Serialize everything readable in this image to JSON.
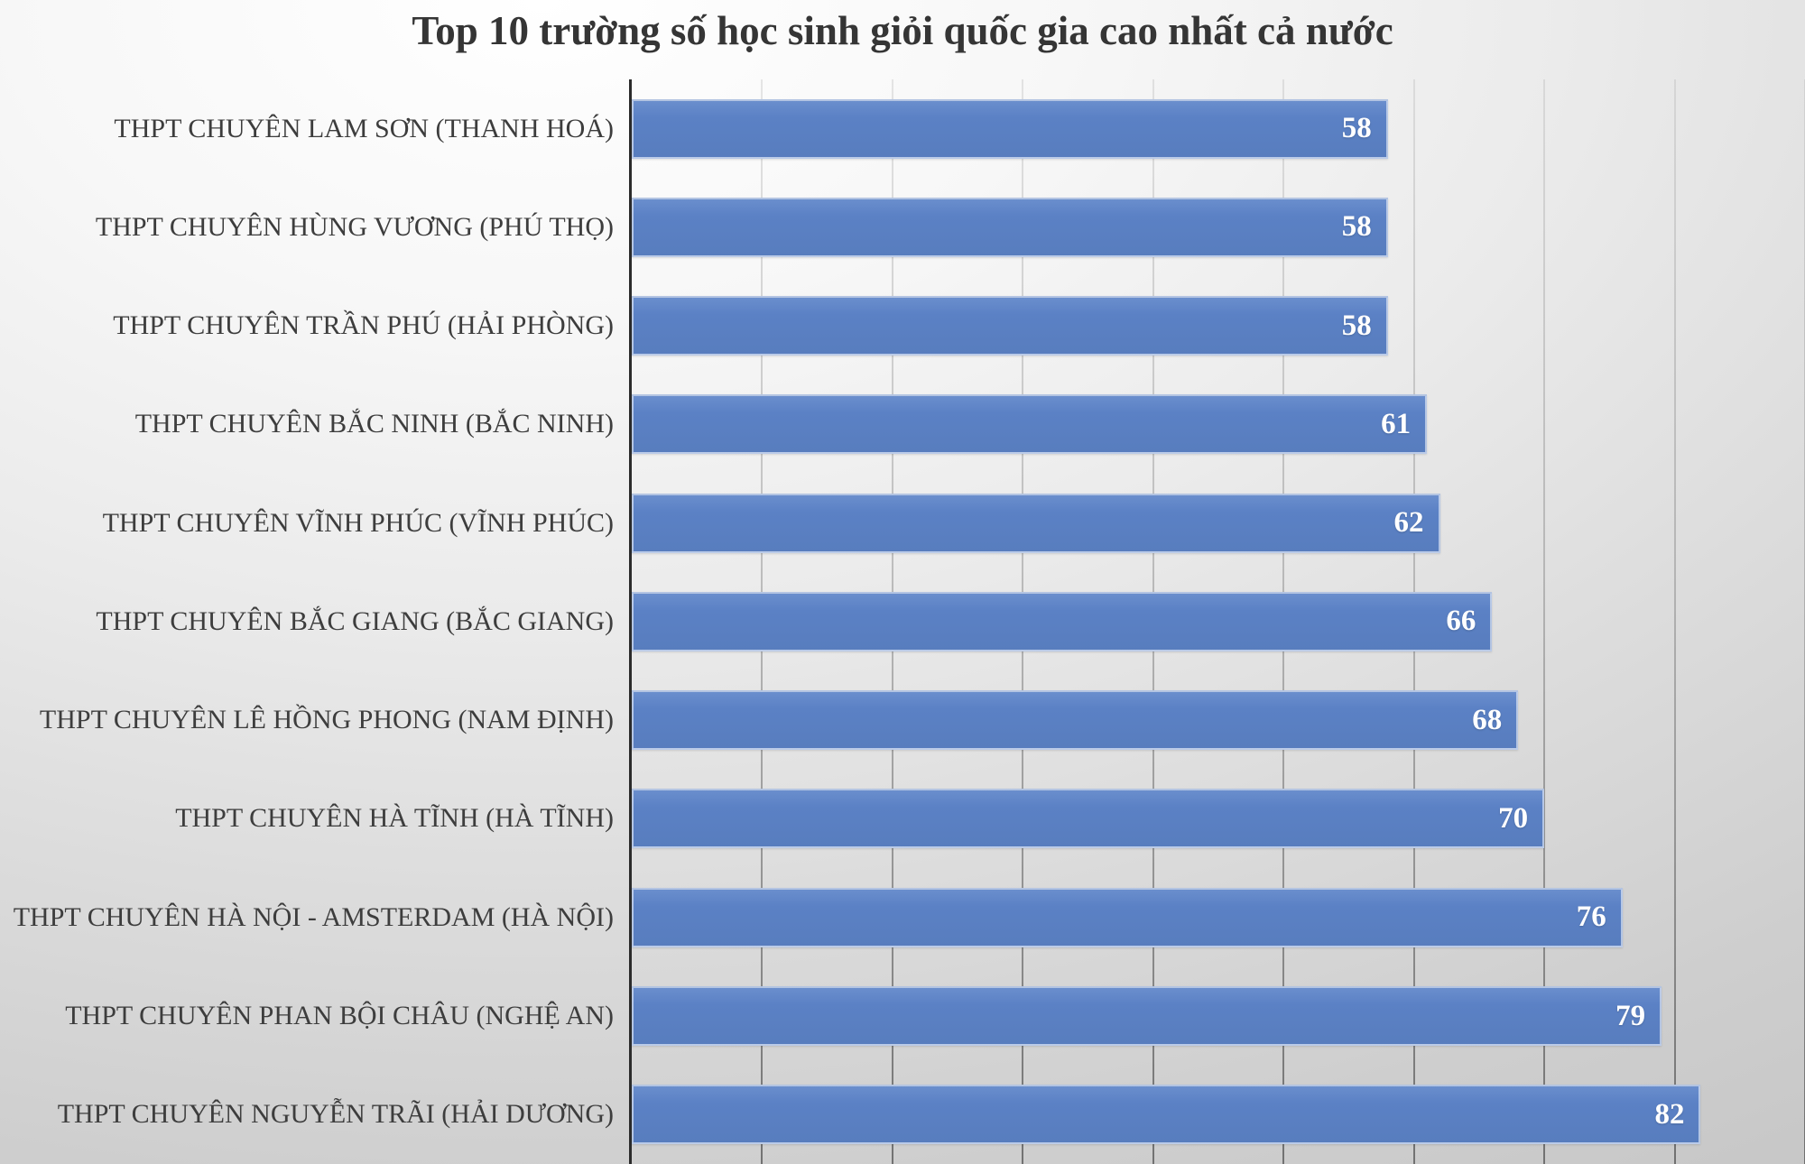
{
  "chart_data": {
    "type": "bar",
    "orientation": "horizontal",
    "title": "Top 10 trường số học sinh giỏi quốc gia cao nhất cả nước",
    "categories": [
      "THPT CHUYÊN LAM SƠN (THANH HOÁ)",
      "THPT CHUYÊN HÙNG VƯƠNG (PHÚ THỌ)",
      "THPT CHUYÊN TRẦN PHÚ (HẢI PHÒNG)",
      "THPT CHUYÊN BẮC NINH (BẮC NINH)",
      "THPT CHUYÊN VĨNH PHÚC (VĨNH PHÚC)",
      "THPT CHUYÊN BẮC GIANG (BẮC GIANG)",
      "THPT CHUYÊN LÊ HỒNG PHONG (NAM ĐỊNH)",
      "THPT CHUYÊN HÀ TĨNH (HÀ TĨNH)",
      "THPT CHUYÊN HÀ NỘI - AMSTERDAM (HÀ NỘI)",
      "THPT CHUYÊN PHAN BỘI CHÂU (NGHỆ AN)",
      "THPT CHUYÊN NGUYỄN TRÃI (HẢI DƯƠNG)"
    ],
    "values": [
      58,
      58,
      58,
      61,
      62,
      66,
      68,
      70,
      76,
      79,
      82
    ],
    "xlim": [
      0,
      90
    ],
    "gridline_step": 10,
    "grid": "vertical",
    "legend": "none",
    "value_labels": "inside-end",
    "colors": {
      "bar_fill": "#5b81c5",
      "bar_border": "rgba(255,255,255,0.55)",
      "value_label": "#ffffff",
      "category_label": "#3d3d3d",
      "title": "#353535",
      "axis_line": "#2b2b2b",
      "background_light": "#ffffff",
      "background_dark": "#c5c5c5"
    }
  }
}
